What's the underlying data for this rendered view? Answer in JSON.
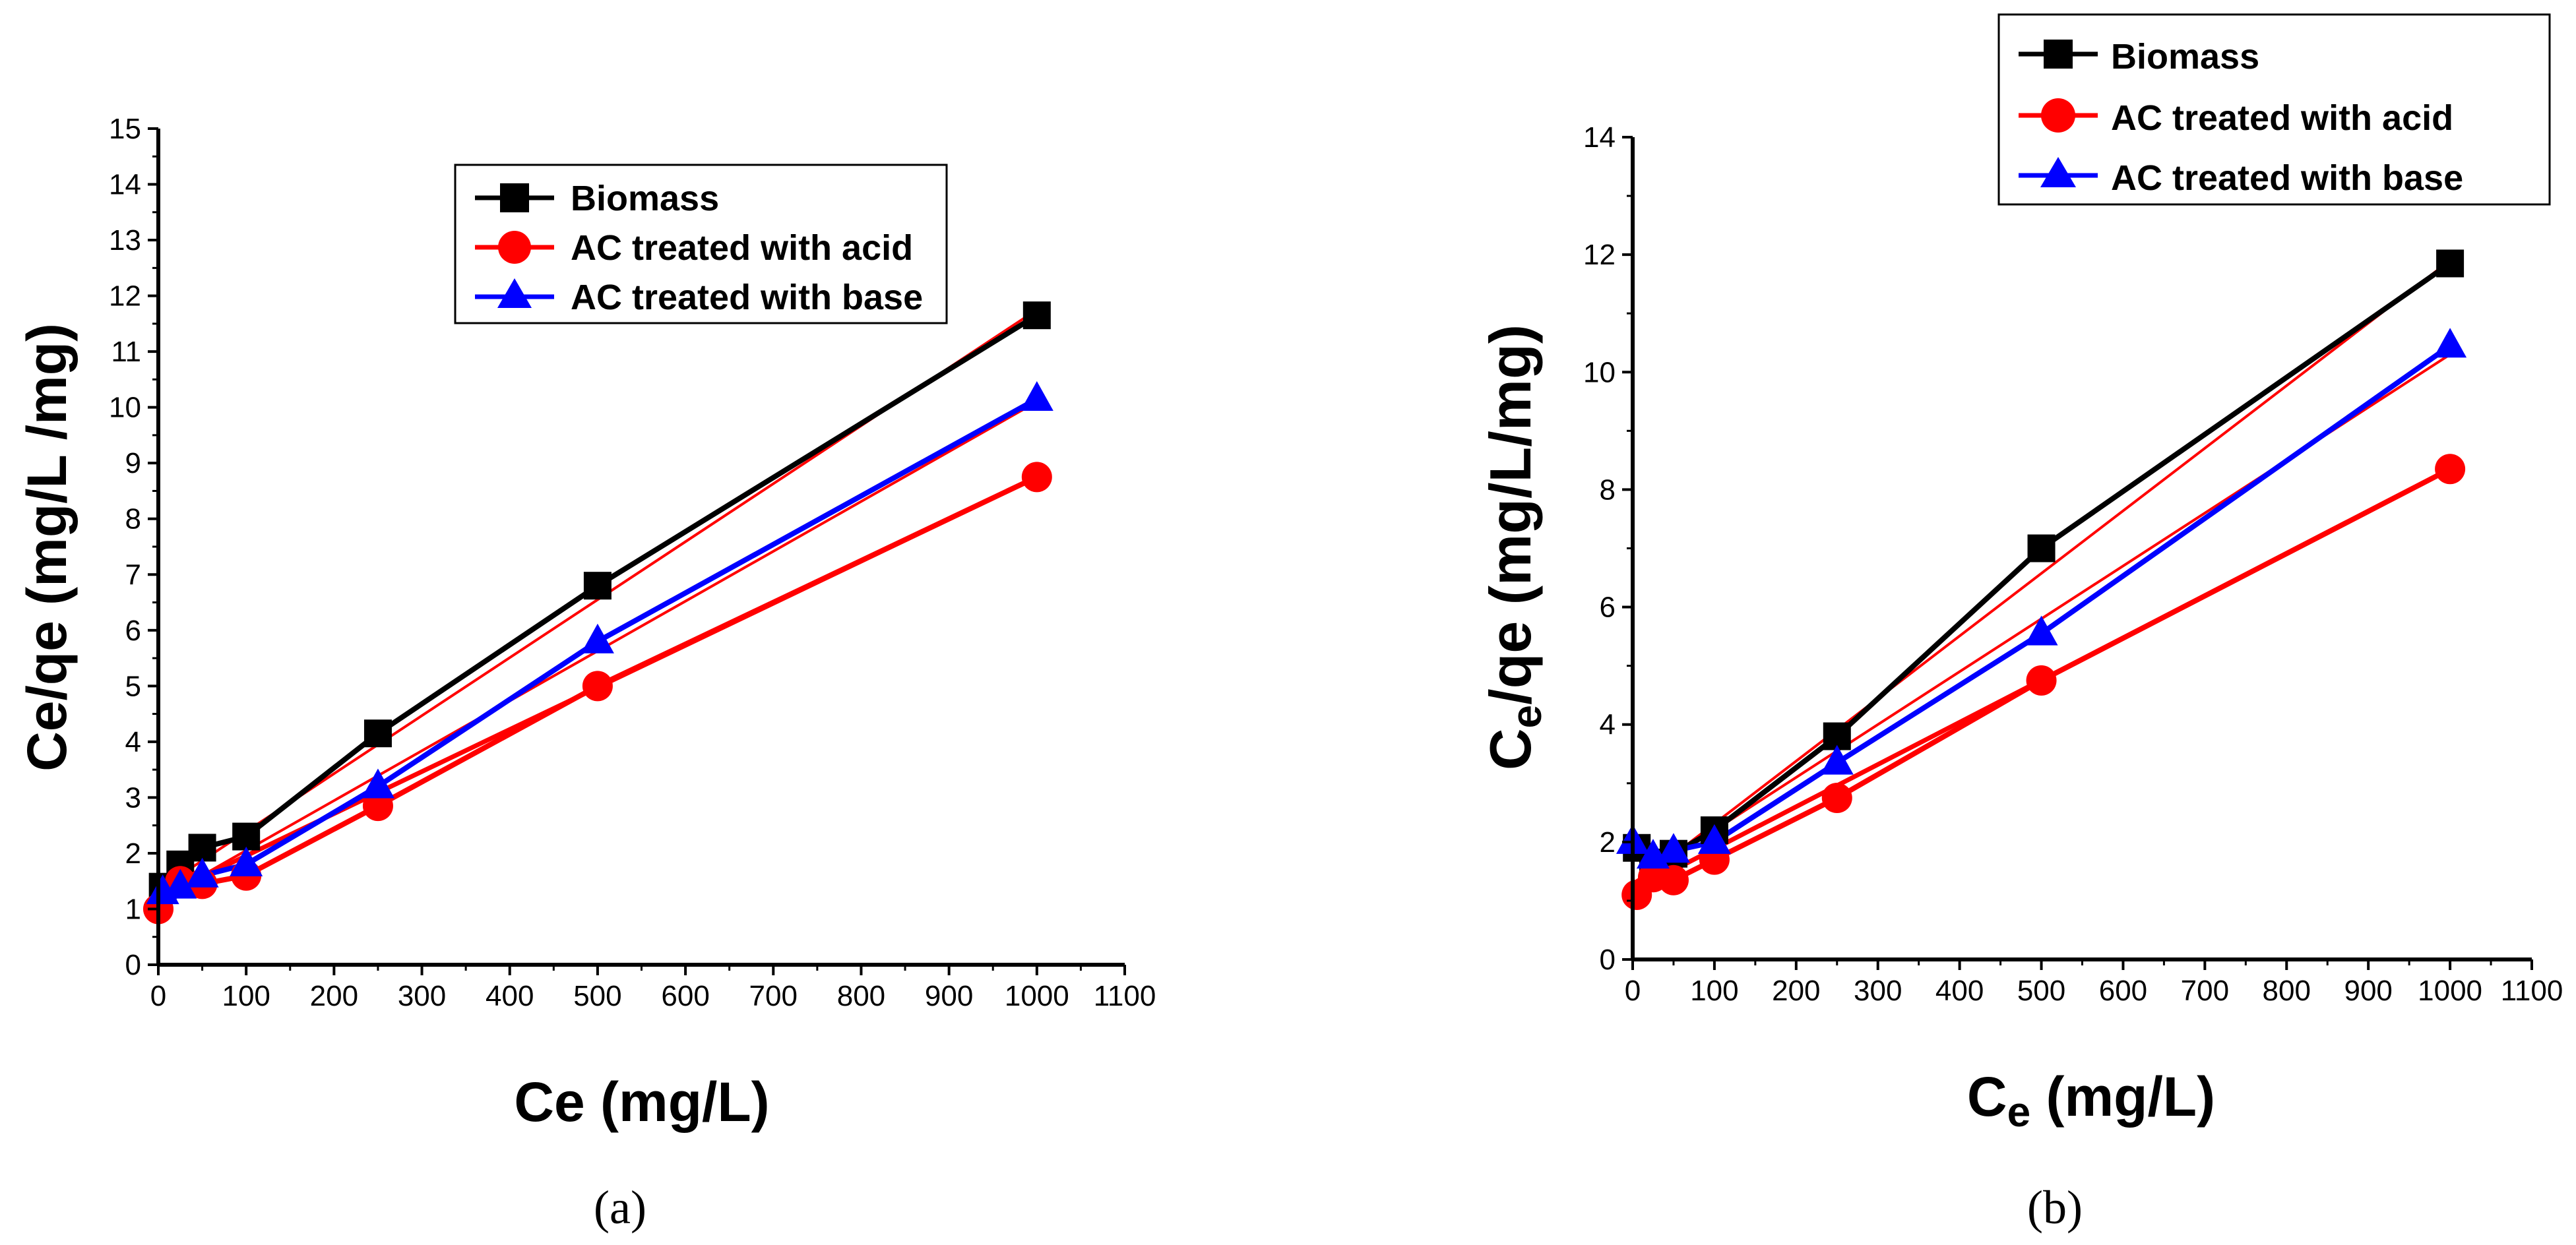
{
  "colors": {
    "biomass": "#000000",
    "acid": "#ff0000",
    "base": "#0000ff"
  },
  "chart_data": [
    {
      "type": "line",
      "caption": "(a)",
      "xlabel": "Ce (mg/L)",
      "ylabel": "Ce/qe (mg/L /mg)",
      "xlim": [
        0,
        1100
      ],
      "ylim": [
        0,
        15
      ],
      "xticks": [
        0,
        100,
        200,
        300,
        400,
        500,
        600,
        700,
        800,
        900,
        1000,
        1100
      ],
      "yticks": [
        0,
        1,
        2,
        3,
        4,
        5,
        6,
        7,
        8,
        9,
        10,
        11,
        12,
        13,
        14,
        15
      ],
      "legend_position": "top-center",
      "series": [
        {
          "name": "Biomass",
          "marker": "square",
          "color": "#000000",
          "x": [
            5,
            25,
            50,
            100,
            250,
            500,
            1000
          ],
          "y": [
            1.4,
            1.8,
            2.1,
            2.3,
            4.15,
            6.8,
            11.65
          ],
          "fit": [
            1.4,
            11.75
          ]
        },
        {
          "name": "AC treated with acid",
          "marker": "circle",
          "color": "#ff0000",
          "x": [
            0,
            25,
            50,
            100,
            250,
            500,
            1000
          ],
          "y": [
            1.0,
            1.5,
            1.45,
            1.6,
            2.85,
            5.0,
            8.75
          ],
          "fit": [
            1.2,
            8.75
          ]
        },
        {
          "name": "AC treated with base",
          "marker": "triangle",
          "color": "#0000ff",
          "x": [
            5,
            25,
            50,
            100,
            250,
            500,
            1000
          ],
          "y": [
            1.3,
            1.4,
            1.6,
            1.8,
            3.2,
            5.8,
            10.15
          ],
          "fit": [
            1.2,
            10.1
          ]
        }
      ]
    },
    {
      "type": "line",
      "caption": "(b)",
      "xlabel_main": "C",
      "xlabel_sub": "e",
      "xlabel_rest": " (mg/L)",
      "ylabel_main": "C",
      "ylabel_sub": "e",
      "ylabel_rest": "/qe (mg/L/mg)",
      "xlim": [
        0,
        1100
      ],
      "ylim": [
        0,
        14
      ],
      "xticks": [
        0,
        100,
        200,
        300,
        400,
        500,
        600,
        700,
        800,
        900,
        1000,
        1100
      ],
      "yticks": [
        0,
        2,
        4,
        6,
        8,
        10,
        12,
        14
      ],
      "legend_position": "top-right",
      "series": [
        {
          "name": "Biomass",
          "marker": "square",
          "color": "#000000",
          "x": [
            5,
            25,
            50,
            100,
            250,
            500,
            1000
          ],
          "y": [
            1.9,
            1.65,
            1.8,
            2.2,
            3.8,
            7.0,
            11.85
          ],
          "fit": [
            1.3,
            11.9
          ]
        },
        {
          "name": "AC treated with acid",
          "marker": "circle",
          "color": "#ff0000",
          "x": [
            5,
            25,
            50,
            100,
            250,
            500,
            1000
          ],
          "y": [
            1.1,
            1.4,
            1.35,
            1.7,
            2.75,
            4.75,
            8.35
          ],
          "fit": [
            1.2,
            8.35
          ]
        },
        {
          "name": "AC treated with base",
          "marker": "triangle",
          "color": "#0000ff",
          "x": [
            0,
            25,
            50,
            100,
            250,
            500,
            1000
          ],
          "y": [
            2.0,
            1.75,
            1.85,
            2.0,
            3.35,
            5.55,
            10.45
          ],
          "fit": [
            1.3,
            10.3
          ]
        }
      ]
    }
  ]
}
